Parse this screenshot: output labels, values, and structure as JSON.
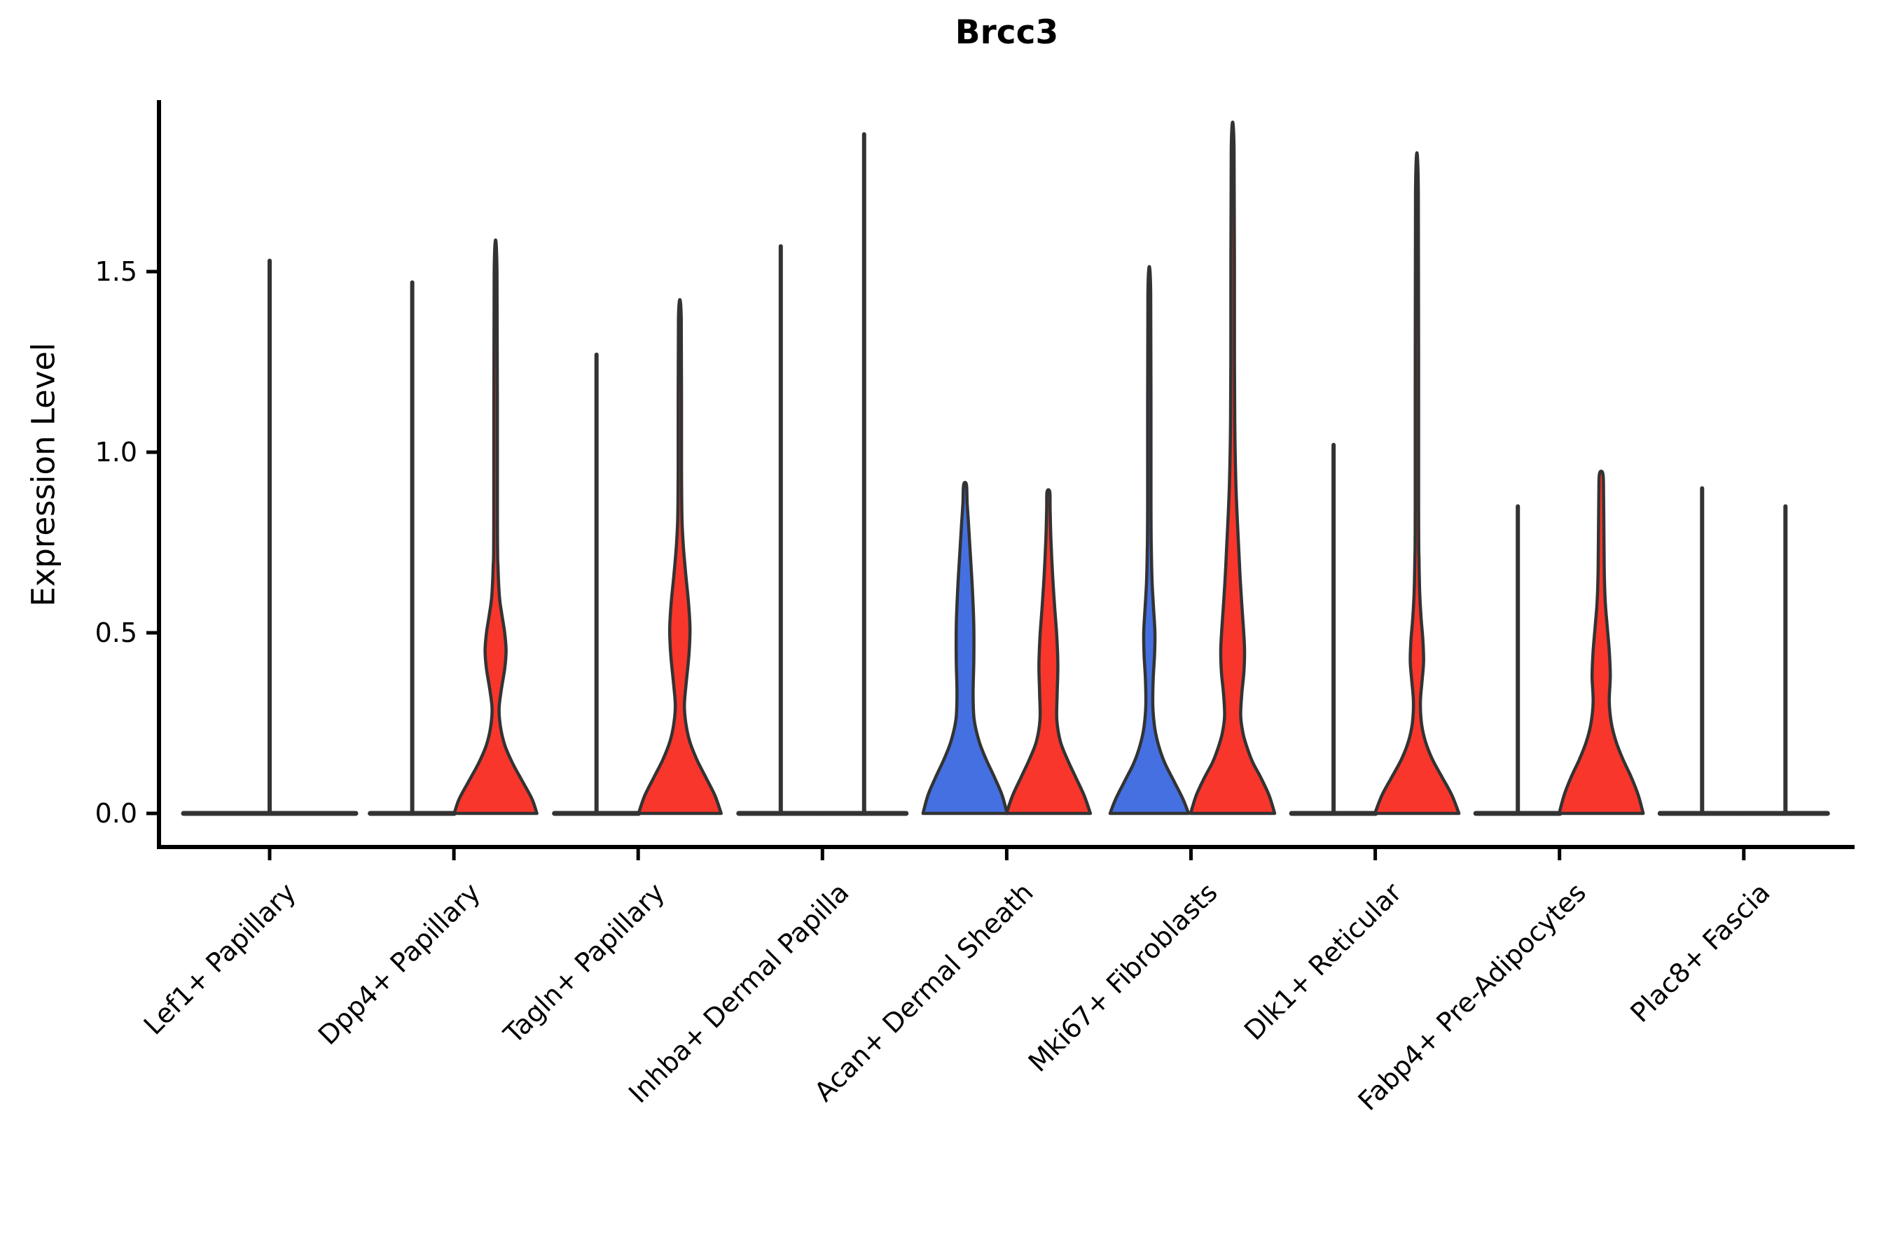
{
  "chart_data": {
    "type": "violin",
    "title": "Brcc3",
    "ylabel": "Expression Level",
    "xlabel": "",
    "ytick_values": [
      0.0,
      0.5,
      1.0,
      1.5
    ],
    "ytick_labels": [
      "0.0",
      "0.5",
      "1.0",
      "1.5"
    ],
    "ylim": [
      -0.09,
      1.97
    ],
    "grid": false,
    "legend": "none",
    "split_palette": {
      "blue": "#4470E2",
      "red": "#F8362B",
      "edge": "#333333",
      "axis": "#000000"
    },
    "note": "Split violin plot; each cluster has a blue (left) and red (right) violin except Lef1+ Papillary which shows a single flat violin. Flat violins are zero-width density lines with a thin max-value spike. width_profile = [expression_value, half_width_px].",
    "categories": [
      {
        "label": "Lef1+ Papillary",
        "violins": [
          {
            "side": "full",
            "color": "none",
            "shape": "flat",
            "half_width": 123,
            "max": 1.53
          }
        ]
      },
      {
        "label": "Dpp4+ Papillary",
        "violins": [
          {
            "side": "left",
            "color": "blue",
            "shape": "flat",
            "half_width": 60,
            "max": 1.47
          },
          {
            "side": "right",
            "color": "red",
            "shape": "body",
            "max": 1.5,
            "width_profile": [
              [
                0,
                59
              ],
              [
                0.04,
                52
              ],
              [
                0.09,
                38
              ],
              [
                0.14,
                24
              ],
              [
                0.19,
                13
              ],
              [
                0.24,
                7
              ],
              [
                0.29,
                5
              ],
              [
                0.34,
                8
              ],
              [
                0.4,
                13
              ],
              [
                0.45,
                15
              ],
              [
                0.5,
                13
              ],
              [
                0.55,
                9
              ],
              [
                0.6,
                5.5
              ],
              [
                0.68,
                3.5
              ],
              [
                0.8,
                2.6
              ],
              [
                1.5,
                2
              ]
            ]
          }
        ]
      },
      {
        "label": "Tagln+ Papillary",
        "violins": [
          {
            "side": "left",
            "color": "blue",
            "shape": "flat",
            "half_width": 60,
            "max": 1.27
          },
          {
            "side": "right",
            "color": "red",
            "shape": "body",
            "max": 1.37,
            "width_profile": [
              [
                0,
                59
              ],
              [
                0.05,
                50
              ],
              [
                0.1,
                37
              ],
              [
                0.15,
                24
              ],
              [
                0.2,
                14
              ],
              [
                0.25,
                8.5
              ],
              [
                0.3,
                6.5
              ],
              [
                0.36,
                9
              ],
              [
                0.44,
                13
              ],
              [
                0.51,
                14.5
              ],
              [
                0.58,
                12.5
              ],
              [
                0.66,
                8.5
              ],
              [
                0.74,
                5
              ],
              [
                0.82,
                3
              ],
              [
                0.95,
                2.4
              ],
              [
                1.37,
                2
              ]
            ]
          }
        ]
      },
      {
        "label": "Inhba+ Dermal Papilla",
        "violins": [
          {
            "side": "left",
            "color": "blue",
            "shape": "flat",
            "half_width": 60,
            "max": 1.57
          },
          {
            "side": "right",
            "color": "red",
            "shape": "flat",
            "half_width": 60,
            "max": 1.88
          }
        ]
      },
      {
        "label": "Acan+ Dermal Sheath",
        "violins": [
          {
            "side": "left",
            "color": "blue",
            "shape": "body",
            "max": 0.91,
            "width_profile": [
              [
                0,
                60
              ],
              [
                0.05,
                53
              ],
              [
                0.1,
                42
              ],
              [
                0.15,
                30
              ],
              [
                0.2,
                20
              ],
              [
                0.26,
                13
              ],
              [
                0.33,
                11.5
              ],
              [
                0.42,
                12.5
              ],
              [
                0.52,
                12.5
              ],
              [
                0.62,
                10.5
              ],
              [
                0.72,
                7.5
              ],
              [
                0.8,
                5
              ],
              [
                0.86,
                3
              ],
              [
                0.91,
                2
              ]
            ]
          },
          {
            "side": "right",
            "color": "red",
            "shape": "body",
            "max": 0.89,
            "width_profile": [
              [
                0,
                60
              ],
              [
                0.05,
                51
              ],
              [
                0.1,
                39
              ],
              [
                0.15,
                27
              ],
              [
                0.2,
                17
              ],
              [
                0.26,
                12
              ],
              [
                0.33,
                12.5
              ],
              [
                0.41,
                13.5
              ],
              [
                0.49,
                12
              ],
              [
                0.57,
                9
              ],
              [
                0.66,
                6
              ],
              [
                0.76,
                3.6
              ],
              [
                0.84,
                2.5
              ],
              [
                0.89,
                2
              ]
            ]
          }
        ]
      },
      {
        "label": "Mki67+ Fibroblasts",
        "violins": [
          {
            "side": "left",
            "color": "blue",
            "shape": "body",
            "max": 1.44,
            "width_profile": [
              [
                0,
                56
              ],
              [
                0.04,
                48
              ],
              [
                0.09,
                35
              ],
              [
                0.14,
                22
              ],
              [
                0.19,
                13
              ],
              [
                0.24,
                7.5
              ],
              [
                0.3,
                5
              ],
              [
                0.37,
                5.5
              ],
              [
                0.44,
                7.5
              ],
              [
                0.5,
                8
              ],
              [
                0.57,
                6
              ],
              [
                0.64,
                4
              ],
              [
                0.72,
                3
              ],
              [
                0.85,
                2.4
              ],
              [
                1.44,
                2
              ]
            ]
          },
          {
            "side": "right",
            "color": "red",
            "shape": "body",
            "max": 1.84,
            "width_profile": [
              [
                0,
                60
              ],
              [
                0.05,
                52
              ],
              [
                0.1,
                40
              ],
              [
                0.14,
                29
              ],
              [
                0.18,
                21
              ],
              [
                0.22,
                15
              ],
              [
                0.27,
                11.5
              ],
              [
                0.33,
                13
              ],
              [
                0.39,
                16
              ],
              [
                0.45,
                17
              ],
              [
                0.51,
                15.5
              ],
              [
                0.58,
                13
              ],
              [
                0.66,
                10.5
              ],
              [
                0.74,
                8.5
              ],
              [
                0.82,
                6.5
              ],
              [
                0.92,
                4.5
              ],
              [
                1.05,
                3.2
              ],
              [
                1.25,
                2.6
              ],
              [
                1.84,
                2
              ]
            ]
          }
        ]
      },
      {
        "label": "Dlk1+ Reticular",
        "violins": [
          {
            "side": "left",
            "color": "blue",
            "shape": "flat",
            "half_width": 60,
            "max": 1.02
          },
          {
            "side": "right",
            "color": "red",
            "shape": "body",
            "max": 1.72,
            "width_profile": [
              [
                0,
                60
              ],
              [
                0.05,
                50
              ],
              [
                0.1,
                36
              ],
              [
                0.15,
                22
              ],
              [
                0.2,
                12
              ],
              [
                0.25,
                6.5
              ],
              [
                0.31,
                5
              ],
              [
                0.37,
                7.5
              ],
              [
                0.42,
                9.5
              ],
              [
                0.48,
                8.5
              ],
              [
                0.54,
                6
              ],
              [
                0.61,
                4
              ],
              [
                0.7,
                3
              ],
              [
                0.85,
                2.4
              ],
              [
                1.72,
                2
              ]
            ]
          }
        ]
      },
      {
        "label": "Fabp4+ Pre-Adipocytes",
        "violins": [
          {
            "side": "left",
            "color": "blue",
            "shape": "flat",
            "half_width": 60,
            "max": 0.85
          },
          {
            "side": "right",
            "color": "red",
            "shape": "body",
            "max": 0.94,
            "width_profile": [
              [
                0,
                60
              ],
              [
                0.05,
                53
              ],
              [
                0.1,
                43
              ],
              [
                0.15,
                31
              ],
              [
                0.2,
                21
              ],
              [
                0.25,
                14.5
              ],
              [
                0.31,
                11.5
              ],
              [
                0.38,
                13
              ],
              [
                0.45,
                11.5
              ],
              [
                0.52,
                8.5
              ],
              [
                0.58,
                6
              ],
              [
                0.66,
                4.5
              ],
              [
                0.75,
                4
              ],
              [
                0.88,
                3.4
              ],
              [
                0.94,
                2.5
              ]
            ]
          }
        ]
      },
      {
        "label": "Plac8+ Fascia",
        "violins": [
          {
            "side": "left",
            "color": "blue",
            "shape": "flat",
            "half_width": 60,
            "max": 0.9
          },
          {
            "side": "right",
            "color": "red",
            "shape": "flat",
            "half_width": 60,
            "max": 0.85
          }
        ]
      }
    ]
  }
}
